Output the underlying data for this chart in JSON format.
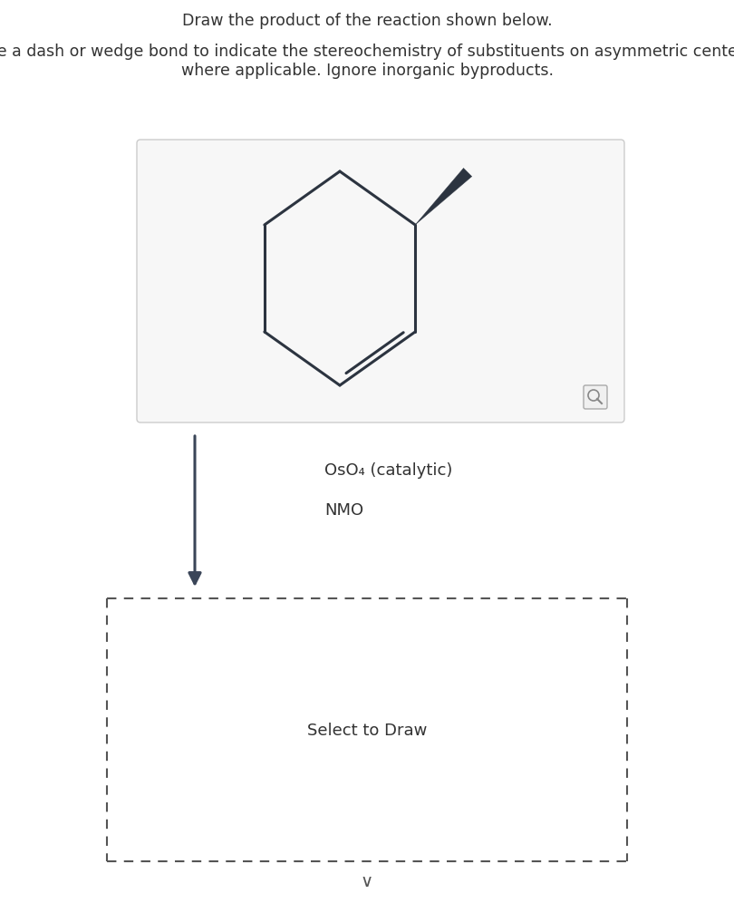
{
  "title1": "Draw the product of the reaction shown below.",
  "title2": "Use a dash or wedge bond to indicate the stereochemistry of substituents on asymmetric centers,\nwhere applicable. Ignore inorganic byproducts.",
  "reagent1": "OsO₄ (catalytic)",
  "reagent2": "NMO",
  "select_text": "Select to Draw",
  "bg_color": "#ffffff",
  "text_color": "#333333",
  "mol_box_bg": "#f7f7f7",
  "mol_box_border": "#cccccc",
  "bond_color": "#2c3440",
  "arrow_color": "#3a4558",
  "dash_color": "#555555"
}
